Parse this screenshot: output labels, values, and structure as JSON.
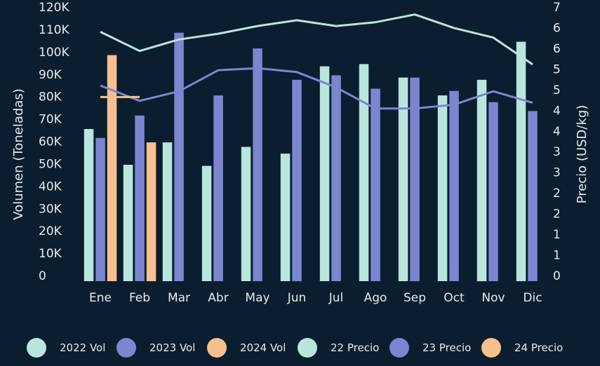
{
  "chart_data": {
    "type": "bar",
    "categories": [
      "Ene",
      "Feb",
      "Mar",
      "Abr",
      "May",
      "Jun",
      "Jul",
      "Ago",
      "Sep",
      "Oct",
      "Nov",
      "Dic"
    ],
    "ylabel": "Volumen (Toneladas)",
    "y2label": "Precio (USD/kg)",
    "ylim": [
      0,
      120000
    ],
    "y2lim": [
      0,
      7
    ],
    "y_ticks": [
      "0",
      "10K",
      "20K",
      "30K",
      "40K",
      "50K",
      "60K",
      "70K",
      "80K",
      "90K",
      "100K",
      "110K",
      "120K"
    ],
    "y2_ticks": [
      "0",
      "1",
      "1",
      "2",
      "2",
      "3",
      "3",
      "4",
      "4",
      "5",
      "5",
      "6",
      "6",
      "7"
    ],
    "bar_series": [
      {
        "name": "2022 Vol",
        "color": "#b9e6dc",
        "values": [
          68000,
          52000,
          62000,
          51500,
          60000,
          57000,
          96000,
          97000,
          91000,
          83000,
          90000,
          107000
        ]
      },
      {
        "name": "2023 Vol",
        "color": "#7b86d1",
        "values": [
          64000,
          74000,
          111000,
          83000,
          104000,
          90000,
          92000,
          86000,
          91000,
          85000,
          80000,
          76000
        ]
      },
      {
        "name": "2024 Vol",
        "color": "#f7c08e",
        "values": [
          101000,
          62000,
          null,
          null,
          null,
          null,
          null,
          null,
          null,
          null,
          null,
          null
        ]
      }
    ],
    "line_series": [
      {
        "name": "22 Precio",
        "color": "#b9e6dc",
        "values": [
          6.5,
          6.0,
          6.3,
          6.45,
          6.65,
          6.8,
          6.65,
          6.75,
          6.95,
          6.6,
          6.35,
          5.65
        ]
      },
      {
        "name": "23 Precio",
        "color": "#7b86d1",
        "values": [
          5.1,
          4.7,
          4.95,
          5.5,
          5.55,
          5.45,
          5.05,
          4.5,
          4.5,
          4.6,
          4.95,
          4.65
        ]
      },
      {
        "name": "24 Precio",
        "color": "#f7c08e",
        "values": [
          4.8,
          4.8,
          null,
          null,
          null,
          null,
          null,
          null,
          null,
          null,
          null,
          null
        ]
      }
    ],
    "legend": {
      "position": "bottom",
      "items": [
        {
          "label": "2022 Vol",
          "color": "#b9e6dc"
        },
        {
          "label": "2023 Vol",
          "color": "#7b86d1"
        },
        {
          "label": "2024 Vol",
          "color": "#f7c08e"
        },
        {
          "label": "22 Precio",
          "color": "#b9e6dc"
        },
        {
          "label": "23 Precio",
          "color": "#7b86d1"
        },
        {
          "label": "24 Precio",
          "color": "#f7c08e"
        }
      ]
    }
  }
}
